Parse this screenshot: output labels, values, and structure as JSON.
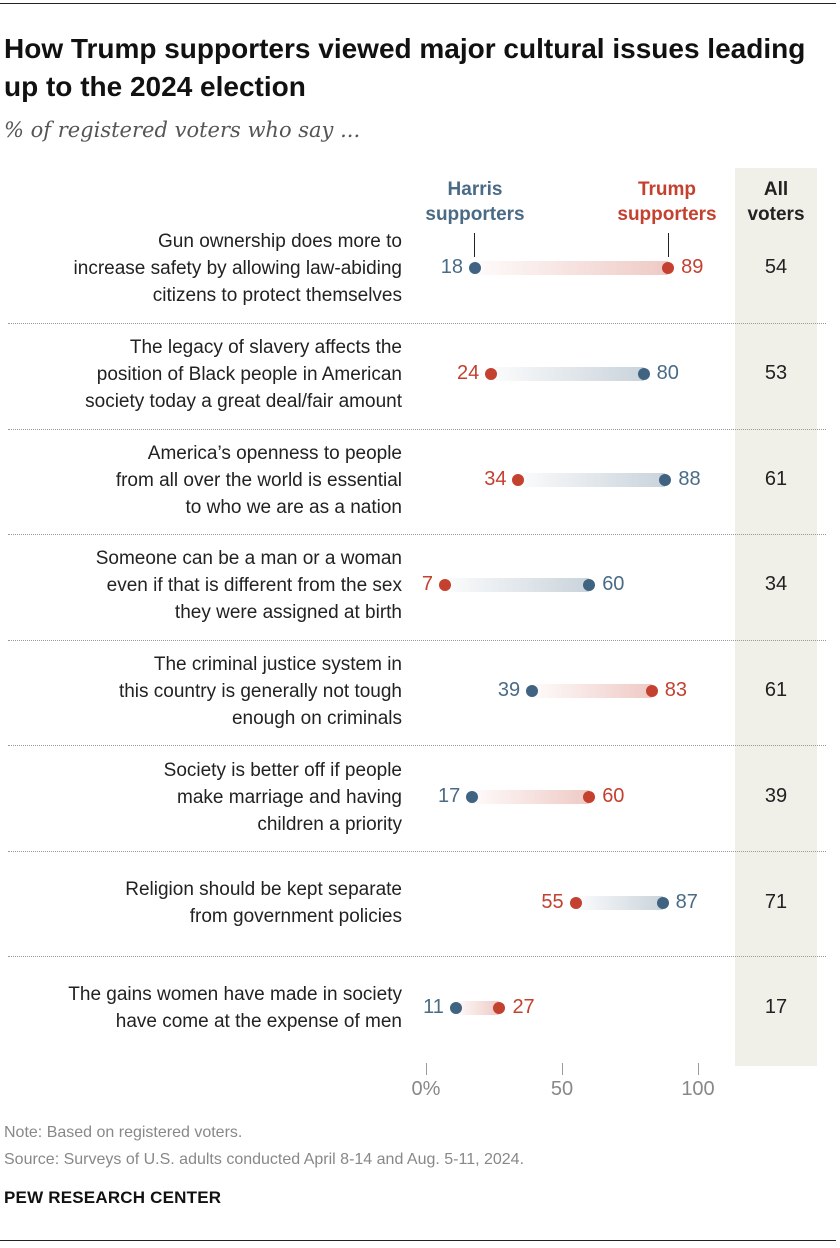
{
  "title": "How Trump supporters viewed major cultural issues leading up to the 2024 election",
  "subtitle": "% of registered voters who say ...",
  "legend": {
    "harris": "Harris supporters",
    "trump": "Trump supporters",
    "all": "All voters"
  },
  "colors": {
    "harris": "#3f6380",
    "harris_text": "#4a6b86",
    "trump": "#c4402f",
    "all_band": "#f0f0e9"
  },
  "chart_data": {
    "type": "dot-range",
    "title": "How Trump supporters viewed major cultural issues leading up to the 2024 election",
    "subtitle": "% of registered voters who say ...",
    "xlim": [
      0,
      100
    ],
    "ticks": [
      0,
      50,
      100
    ],
    "tick_labels": [
      "0%",
      "50",
      "100"
    ],
    "series": [
      {
        "name": "Harris supporters",
        "key": "harris"
      },
      {
        "name": "Trump supporters",
        "key": "trump"
      },
      {
        "name": "All voters",
        "key": "all"
      }
    ],
    "rows": [
      {
        "label": "Gun ownership does more to increase safety by allowing law-abiding citizens to protect themselves",
        "harris": 18,
        "trump": 89,
        "all": 54
      },
      {
        "label": "The legacy of slavery affects the position of Black people in American society today a great deal/fair amount",
        "harris": 80,
        "trump": 24,
        "all": 53
      },
      {
        "label": "America’s openness to people from all over the world is essential to who we are as a nation",
        "harris": 88,
        "trump": 34,
        "all": 61
      },
      {
        "label": "Someone can be a man or a woman even if that is different from the sex they were assigned at birth",
        "harris": 60,
        "trump": 7,
        "all": 34
      },
      {
        "label": "The criminal justice system in this country is generally not tough enough on criminals",
        "harris": 39,
        "trump": 83,
        "all": 61
      },
      {
        "label": "Society is better off if people make marriage and having children a priority",
        "harris": 17,
        "trump": 60,
        "all": 39
      },
      {
        "label": "Religion should be kept separate from government policies",
        "harris": 87,
        "trump": 55,
        "all": 71
      },
      {
        "label": "The gains women have made in society have come at the expense of men",
        "harris": 11,
        "trump": 27,
        "all": 17
      }
    ]
  },
  "note": "Note: Based on registered voters.",
  "source": "Source: Surveys of U.S. adults conducted April 8-14 and Aug. 5-11, 2024.",
  "organization": "PEW RESEARCH CENTER"
}
